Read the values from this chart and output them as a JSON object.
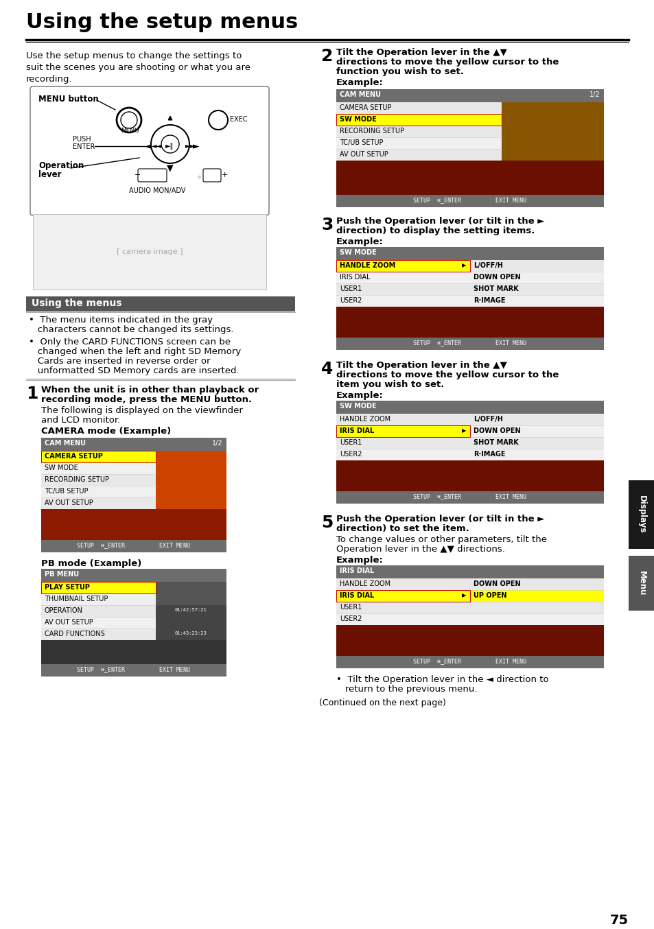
{
  "title": "Using the setup menus",
  "bg_color": "#ffffff",
  "intro_text_line1": "Use the setup menus to change the settings to",
  "intro_text_line2": "suit the scenes you are shooting or what you are",
  "intro_text_line3": "recording.",
  "section_using_menus": "Using the menus",
  "bullet1_line1": "•  The menu items indicated in the gray",
  "bullet1_line2": "   characters cannot be changed its settings.",
  "bullet2_line1": "•  Only the CARD FUNCTIONS screen can be",
  "bullet2_line2": "   changed when the left and right SD Memory",
  "bullet2_line3": "   Cards are inserted in reverse order or",
  "bullet2_line4": "   unformatted SD Memory cards are inserted.",
  "step1_line1": "When the unit is in other than playback or",
  "step1_line2": "recording mode, press the MENU button.",
  "step1_sub1": "The following is displayed on the viewfinder",
  "step1_sub2": "and LCD monitor.",
  "step1_label": "CAMERA mode (Example)",
  "step2_line1": "Tilt the Operation lever in the ▲▼",
  "step2_line2": "directions to move the yellow cursor to the",
  "step2_line3": "function you wish to set.",
  "step2_example": "Example:",
  "step3_line1": "Push the Operation lever (or tilt in the ►",
  "step3_line2": "direction) to display the setting items.",
  "step3_example": "Example:",
  "step4_line1": "Tilt the Operation lever in the ▲▼",
  "step4_line2": "directions to move the yellow cursor to the",
  "step4_line3": "item you wish to set.",
  "step4_example": "Example:",
  "step5_line1": "Push the Operation lever (or tilt in the ►",
  "step5_line2": "direction) to set the item.",
  "step5_sub1": "To change values or other parameters, tilt the",
  "step5_sub2": "Operation lever in the ▲▼ directions.",
  "step5_example": "Example:",
  "note_line1": "•  Tilt the Operation lever in the ◄ direction to",
  "note_line2": "   return to the previous menu.",
  "continued": "(Continued on the next page)",
  "page_num": "75",
  "sidebar_displays": "Displays",
  "sidebar_menu": "Menu",
  "cam_menu_header": "CAM MENU",
  "cam_menu_page": "1/2",
  "cam_menu_items": [
    "CAMERA SETUP",
    "SW MODE",
    "RECORDING SETUP",
    "TC/UB SETUP",
    "AV OUT SETUP"
  ],
  "pb_menu_header": "PB MENU",
  "pb_menu_items": [
    "PLAY SETUP",
    "THUMBNAIL SETUP",
    "OPERATION",
    "AV OUT SETUP",
    "CARD FUNCTIONS"
  ],
  "sw_mode_header": "SW MODE",
  "sw_mode_items_left": [
    "HANDLE ZOOM",
    "IRIS DIAL",
    "USER1",
    "USER2"
  ],
  "sw_mode_items_right": [
    "L/OFF/H",
    "DOWN OPEN",
    "SHOT MARK",
    "R·IMAGE"
  ],
  "iris_dial_header": "IRIS DIAL",
  "iris_dial_items_left": [
    "HANDLE ZOOM",
    "IRIS DIAL",
    "USER1",
    "USER2"
  ],
  "iris_dial_items_right_top": "DOWN OPEN",
  "iris_dial_items_right_sel": "UP OPEN",
  "header_bg": "#6d6d6d",
  "header_text": "#ffffff",
  "row_selected_bg": "#ffff00",
  "row_normal_bg1": "#e8e8e8",
  "row_normal_bg2": "#f0f0f0",
  "footer_bg": "#6d6d6d",
  "section_header_bg": "#555555",
  "divider_color": "#888888",
  "step_num_size": 18,
  "body_size": 9.5,
  "bold_size": 9.5,
  "label_size": 9,
  "menu_header_size": 7,
  "menu_row_size": 7,
  "menu_footer_size": 6
}
